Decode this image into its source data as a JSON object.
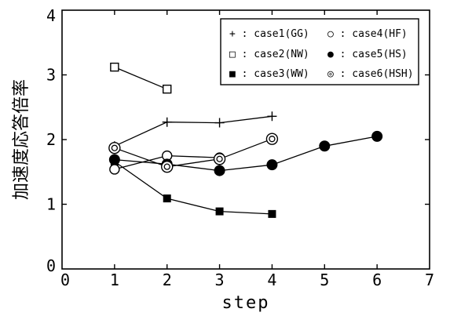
{
  "chart_data": {
    "type": "line",
    "title": "",
    "xlabel": "step",
    "ylabel": "加速度応答倍率",
    "xlim": [
      0,
      7
    ],
    "ylim": [
      0,
      4
    ],
    "xticks": [
      "0",
      "1",
      "2",
      "3",
      "4",
      "5",
      "6",
      "7"
    ],
    "yticks": [
      "0",
      "1",
      "2",
      "3",
      "4"
    ],
    "grid": false,
    "legend_position": "top-right",
    "series": [
      {
        "name": "+ : case1(GG)",
        "marker": "plus",
        "points": [
          [
            1,
            1.9
          ],
          [
            2,
            2.27
          ],
          [
            3,
            2.26
          ],
          [
            4,
            2.36
          ]
        ]
      },
      {
        "name": "□ : case2(NW)",
        "marker": "square-open",
        "points": [
          [
            1,
            3.12
          ],
          [
            2,
            2.78
          ]
        ]
      },
      {
        "name": "■ : case3(WW)",
        "marker": "square-filled",
        "points": [
          [
            1,
            1.66
          ],
          [
            2,
            1.09
          ],
          [
            3,
            0.89
          ],
          [
            4,
            0.85
          ]
        ]
      },
      {
        "name": "○ : case4(HF)",
        "marker": "circle-open",
        "points": [
          [
            1,
            1.54
          ],
          [
            2,
            1.75
          ],
          [
            3,
            1.72
          ]
        ]
      },
      {
        "name": "● : case5(HS)",
        "marker": "circle-filled",
        "points": [
          [
            1,
            1.69
          ],
          [
            2,
            1.62
          ],
          [
            3,
            1.52
          ],
          [
            4,
            1.61
          ],
          [
            5,
            1.9
          ],
          [
            6,
            2.05
          ]
        ]
      },
      {
        "name": "◎ : case6(HSH)",
        "marker": "circle-double",
        "points": [
          [
            1,
            1.87
          ],
          [
            2,
            1.58
          ],
          [
            3,
            1.7
          ],
          [
            4,
            2.01
          ]
        ]
      }
    ]
  }
}
